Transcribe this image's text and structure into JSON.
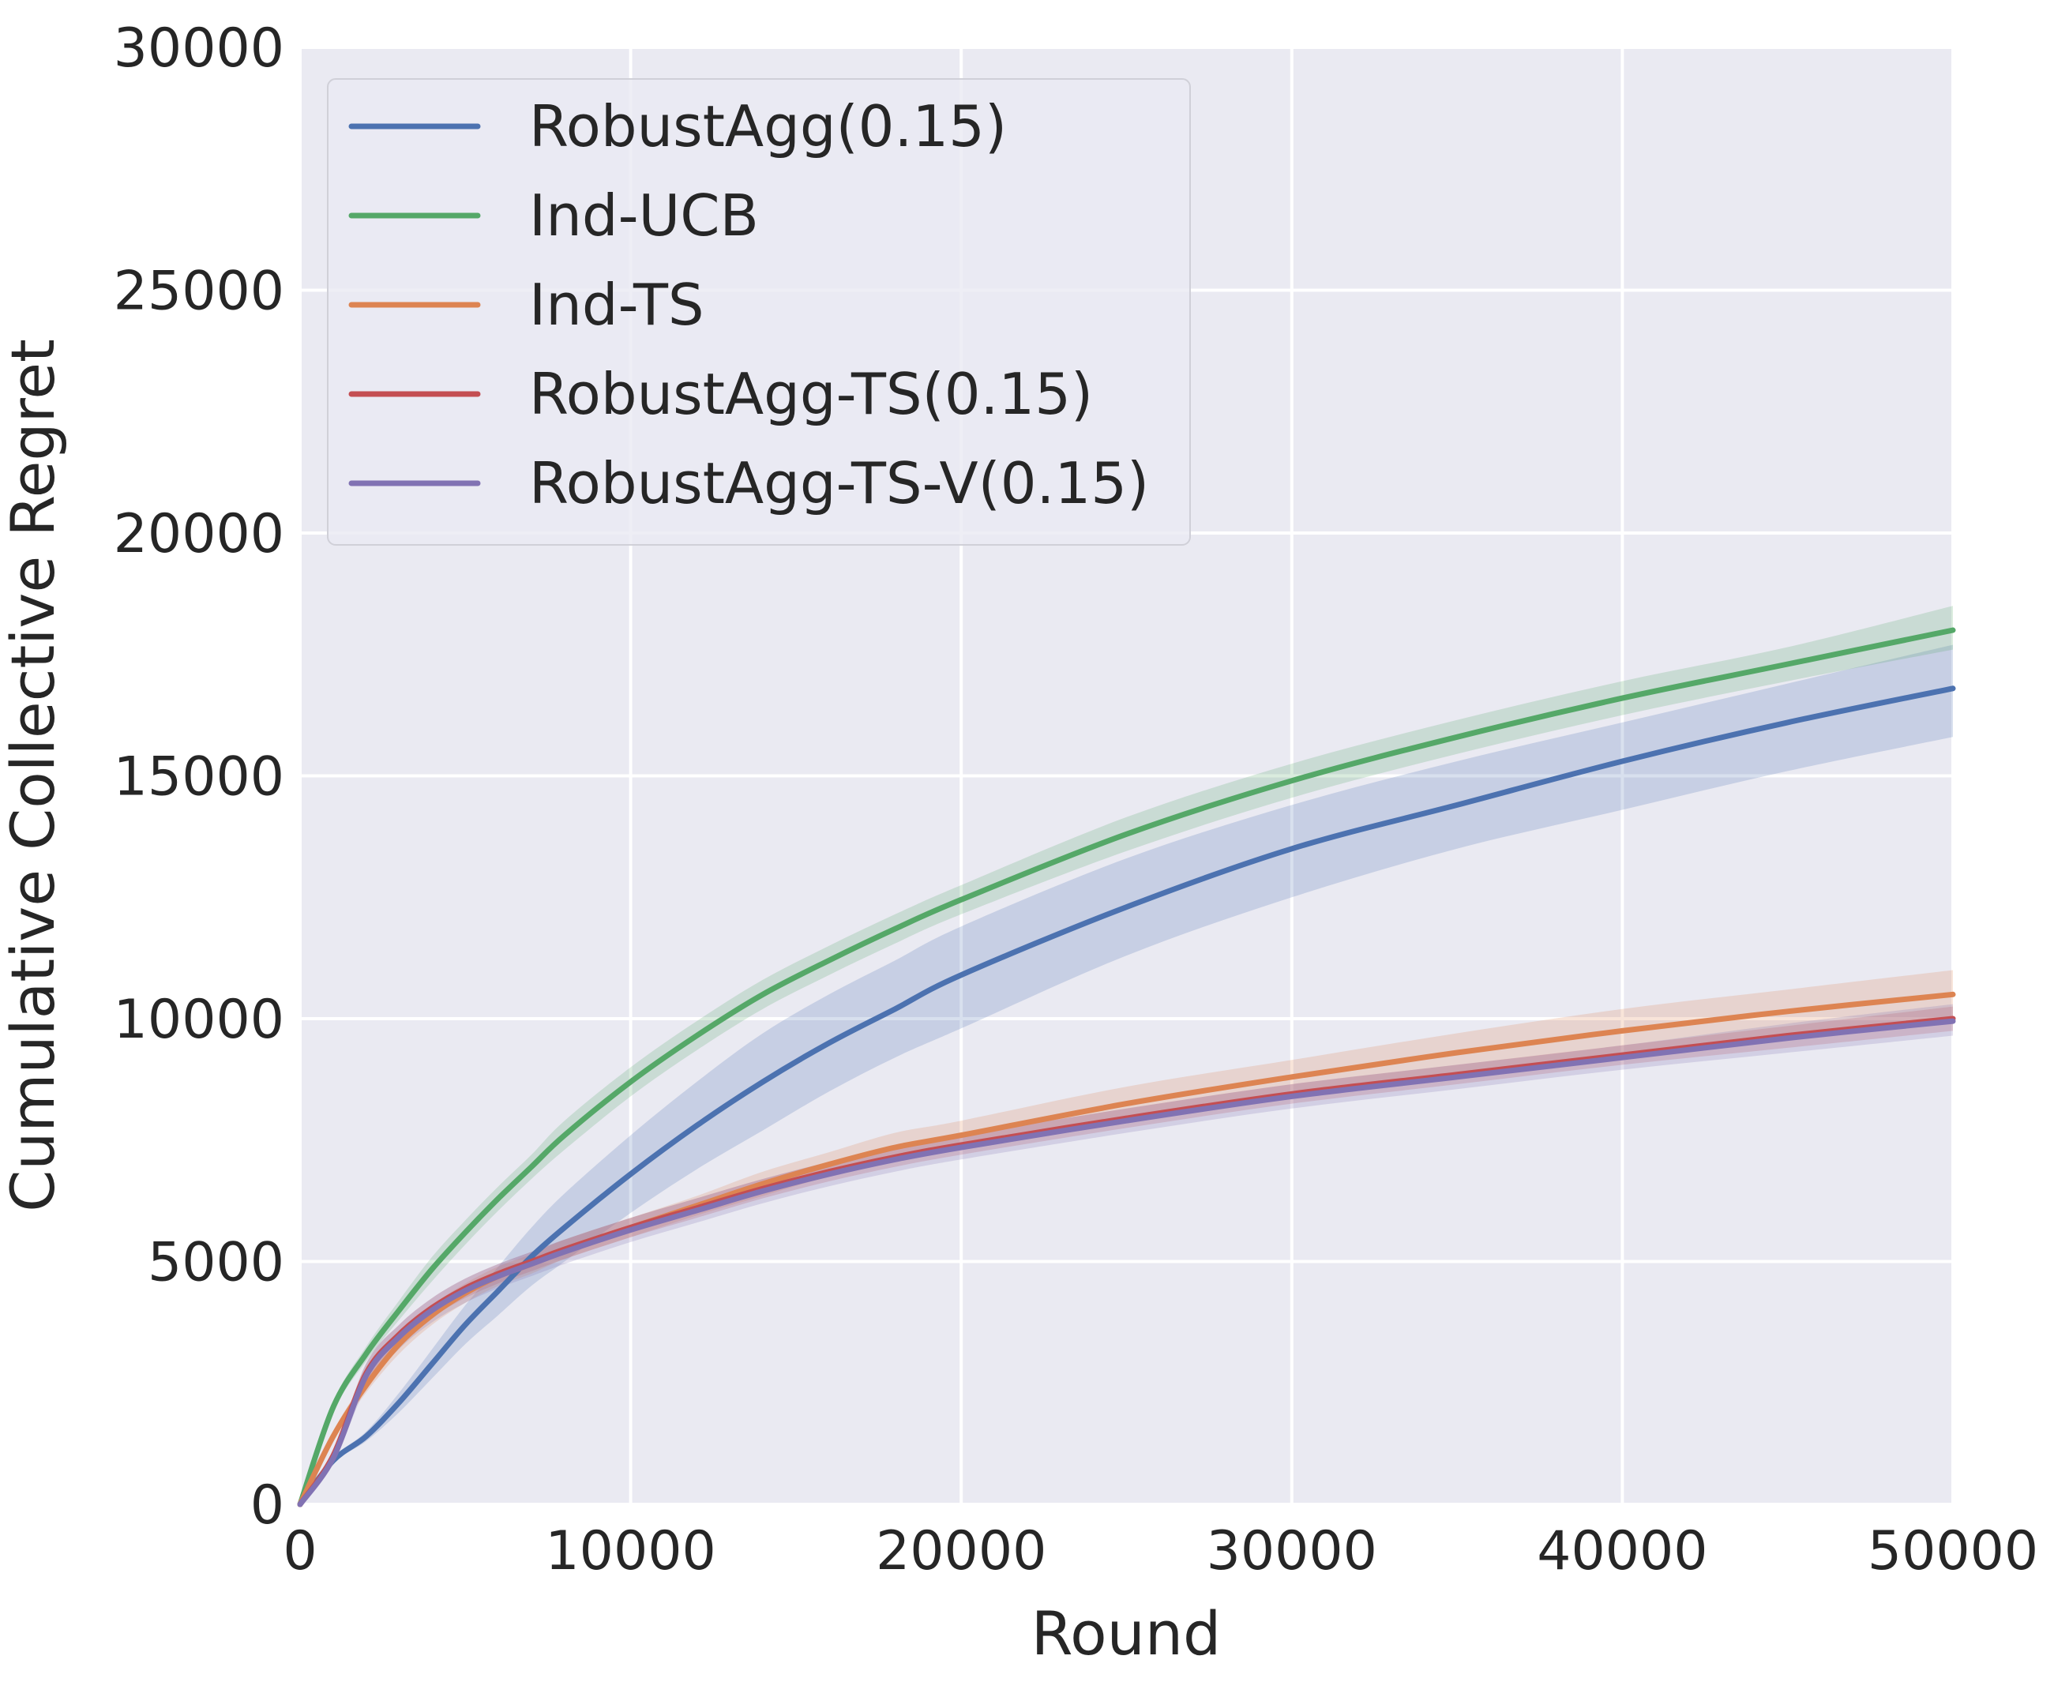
{
  "chart_data": {
    "type": "line",
    "title": "",
    "xlabel": "Round",
    "ylabel": "Cumulative Collective Regret",
    "xlim": [
      0,
      50000
    ],
    "ylim": [
      0,
      30000
    ],
    "xticks": [
      0,
      10000,
      20000,
      30000,
      40000,
      50000
    ],
    "yticks": [
      0,
      5000,
      10000,
      15000,
      20000,
      25000,
      30000
    ],
    "xtick_labels": [
      "0",
      "10000",
      "20000",
      "30000",
      "40000",
      "50000"
    ],
    "ytick_labels": [
      "0",
      "5000",
      "10000",
      "15000",
      "20000",
      "25000",
      "30000"
    ],
    "grid": true,
    "legend_position": "top-left",
    "background_color": "#EAEAF2",
    "x": [
      0,
      1000,
      2000,
      3000,
      4000,
      5000,
      6000,
      7000,
      8000,
      10000,
      12000,
      14000,
      16000,
      18000,
      20000,
      25000,
      30000,
      35000,
      40000,
      45000,
      50000
    ],
    "series": [
      {
        "name": "RobustAgg(0.15)",
        "color": "#4C72B0",
        "values": [
          0,
          900,
          1400,
          2100,
          2900,
          3700,
          4400,
          5100,
          5700,
          6800,
          7800,
          8700,
          9500,
          10200,
          10900,
          12300,
          13500,
          14400,
          15300,
          16100,
          16800
        ],
        "lower": [
          0,
          850,
          1300,
          1900,
          2600,
          3300,
          3900,
          4500,
          5000,
          6000,
          6900,
          7700,
          8500,
          9200,
          9800,
          11300,
          12500,
          13500,
          14300,
          15100,
          15800
        ],
        "upper": [
          0,
          950,
          1500,
          2300,
          3200,
          4100,
          4900,
          5700,
          6400,
          7600,
          8700,
          9700,
          10500,
          11200,
          11900,
          13300,
          14400,
          15300,
          16100,
          16900,
          17700
        ]
      },
      {
        "name": "Ind-UCB",
        "color": "#55A868",
        "values": [
          0,
          2000,
          3100,
          4000,
          4850,
          5600,
          6300,
          6950,
          7600,
          8700,
          9650,
          10500,
          11200,
          11850,
          12450,
          13800,
          14900,
          15800,
          16600,
          17300,
          18000
        ],
        "lower": [
          0,
          1900,
          2950,
          3800,
          4600,
          5350,
          6050,
          6700,
          7300,
          8400,
          9350,
          10200,
          10900,
          11550,
          12150,
          13450,
          14550,
          15450,
          16250,
          16950,
          17600
        ],
        "upper": [
          0,
          2100,
          3250,
          4200,
          5100,
          5850,
          6550,
          7200,
          7900,
          9000,
          9950,
          10800,
          11500,
          12150,
          12750,
          14150,
          15250,
          16150,
          16950,
          17650,
          18500
        ]
      },
      {
        "name": "Ind-TS",
        "color": "#DD8452",
        "values": [
          0,
          1400,
          2450,
          3300,
          3900,
          4350,
          4700,
          4950,
          5250,
          5700,
          6150,
          6600,
          7000,
          7350,
          7600,
          8250,
          8800,
          9300,
          9750,
          10150,
          10500
        ],
        "lower": [
          0,
          1300,
          2300,
          3100,
          3700,
          4150,
          4500,
          4750,
          5050,
          5500,
          5950,
          6350,
          6750,
          7050,
          7300,
          7900,
          8450,
          8900,
          9300,
          9700,
          10000
        ],
        "upper": [
          0,
          1500,
          2600,
          3500,
          4100,
          4550,
          4900,
          5150,
          5450,
          5900,
          6350,
          6850,
          7250,
          7650,
          7900,
          8600,
          9150,
          9700,
          10200,
          10600,
          11000
        ]
      },
      {
        "name": "RobustAgg-TS(0.15)",
        "color": "#C44E52",
        "values": [
          0,
          1000,
          2700,
          3500,
          4050,
          4450,
          4750,
          5000,
          5250,
          5700,
          6100,
          6500,
          6850,
          7150,
          7400,
          7950,
          8450,
          8850,
          9250,
          9650,
          10000
        ],
        "lower": [
          0,
          900,
          2500,
          3300,
          3850,
          4250,
          4550,
          4800,
          5050,
          5500,
          5900,
          6300,
          6650,
          6950,
          7200,
          7750,
          8250,
          8650,
          9050,
          9400,
          9750
        ],
        "upper": [
          0,
          1100,
          2900,
          3700,
          4250,
          4650,
          4950,
          5200,
          5450,
          5900,
          6300,
          6700,
          7050,
          7350,
          7600,
          8150,
          8650,
          9050,
          9450,
          9850,
          10250
        ]
      },
      {
        "name": "RobustAgg-TS-V(0.15)",
        "color": "#8172B3",
        "values": [
          0,
          950,
          2650,
          3450,
          4000,
          4400,
          4700,
          4950,
          5200,
          5650,
          6050,
          6450,
          6800,
          7100,
          7350,
          7900,
          8400,
          8800,
          9200,
          9600,
          9950
        ],
        "lower": [
          0,
          850,
          2400,
          3200,
          3750,
          4150,
          4450,
          4700,
          4950,
          5400,
          5800,
          6200,
          6550,
          6850,
          7100,
          7650,
          8150,
          8550,
          8950,
          9300,
          9650
        ],
        "upper": [
          0,
          1050,
          2900,
          3700,
          4250,
          4650,
          4950,
          5200,
          5450,
          5900,
          6300,
          6700,
          7050,
          7350,
          7600,
          8150,
          8650,
          9050,
          9450,
          9900,
          10300
        ]
      }
    ]
  }
}
